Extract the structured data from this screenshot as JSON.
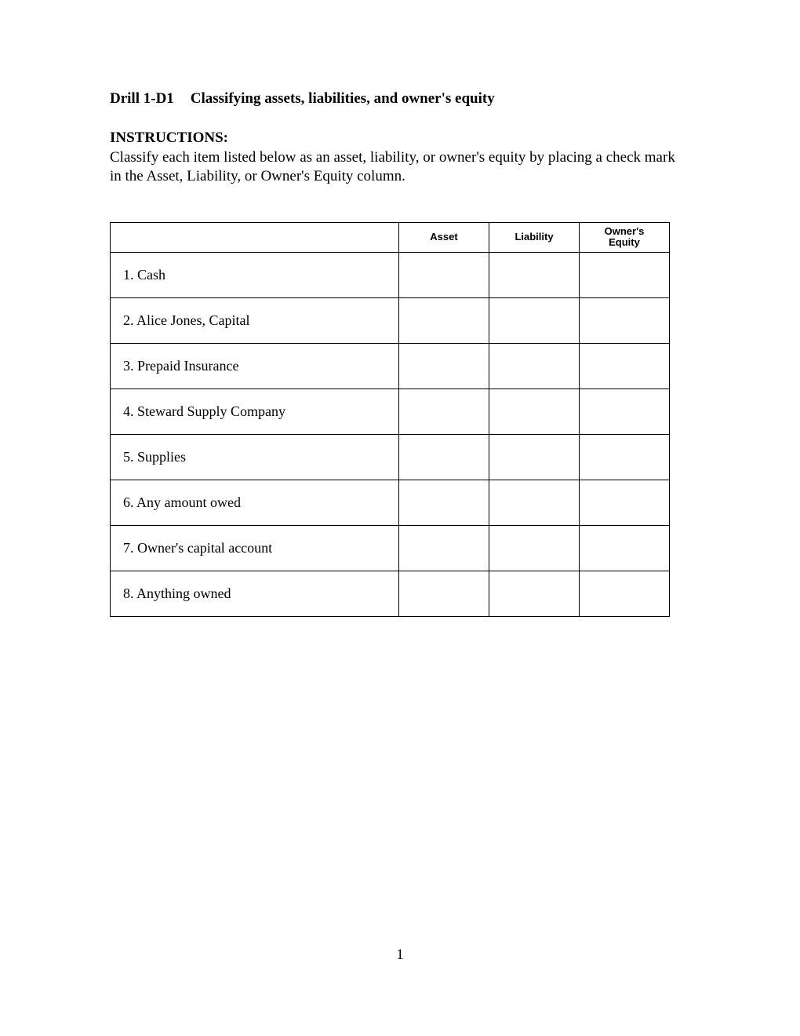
{
  "header": {
    "drill_label": "Drill 1-D1",
    "drill_title": "Classifying assets, liabilities, and owner's equity"
  },
  "instructions": {
    "label": "INSTRUCTIONS:",
    "text": "Classify each item listed below as an asset, liability, or owner's equity by placing a check mark in the Asset, Liability, or Owner's Equity column."
  },
  "table": {
    "headers": {
      "item": "",
      "asset": "Asset",
      "liability": "Liability",
      "owners_equity": "Owner's\nEquity"
    },
    "rows": [
      {
        "num": "1.",
        "label": "Cash"
      },
      {
        "num": "2.",
        "label": "Alice Jones, Capital"
      },
      {
        "num": "3.",
        "label": "Prepaid Insurance"
      },
      {
        "num": "4.",
        "label": "Steward Supply Company"
      },
      {
        "num": "5.",
        "label": "Supplies"
      },
      {
        "num": "6.",
        "label": "Any amount owed"
      },
      {
        "num": "7.",
        "label": "Owner's capital account"
      },
      {
        "num": "8.",
        "label": "Anything owned"
      }
    ]
  },
  "page_number": "1"
}
